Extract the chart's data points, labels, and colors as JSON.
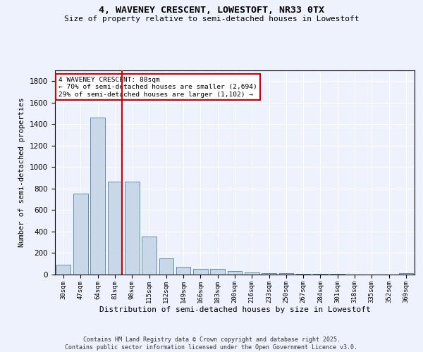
{
  "title1": "4, WAVENEY CRESCENT, LOWESTOFT, NR33 0TX",
  "title2": "Size of property relative to semi-detached houses in Lowestoft",
  "xlabel": "Distribution of semi-detached houses by size in Lowestoft",
  "ylabel": "Number of semi-detached properties",
  "categories": [
    "30sqm",
    "47sqm",
    "64sqm",
    "81sqm",
    "98sqm",
    "115sqm",
    "132sqm",
    "149sqm",
    "166sqm",
    "183sqm",
    "200sqm",
    "216sqm",
    "233sqm",
    "250sqm",
    "267sqm",
    "284sqm",
    "301sqm",
    "318sqm",
    "335sqm",
    "352sqm",
    "369sqm"
  ],
  "values": [
    90,
    755,
    1460,
    865,
    865,
    355,
    150,
    70,
    55,
    50,
    35,
    20,
    15,
    10,
    8,
    5,
    5,
    3,
    2,
    2,
    10
  ],
  "bar_color": "#c8d8e8",
  "bar_edge_color": "#5580a0",
  "subject_bar_index": 3,
  "annotation_title": "4 WAVENEY CRESCENT: 88sqm",
  "annotation_line1": "← 70% of semi-detached houses are smaller (2,694)",
  "annotation_line2": "29% of semi-detached houses are larger (1,102) →",
  "footer1": "Contains HM Land Registry data © Crown copyright and database right 2025.",
  "footer2": "Contains public sector information licensed under the Open Government Licence v3.0.",
  "ylim": [
    0,
    1900
  ],
  "bg_color": "#eef2fc",
  "grid_color": "#ffffff",
  "annotation_box_color": "#ffffff",
  "annotation_box_edge": "#cc0000",
  "red_line_color": "#cc0000"
}
